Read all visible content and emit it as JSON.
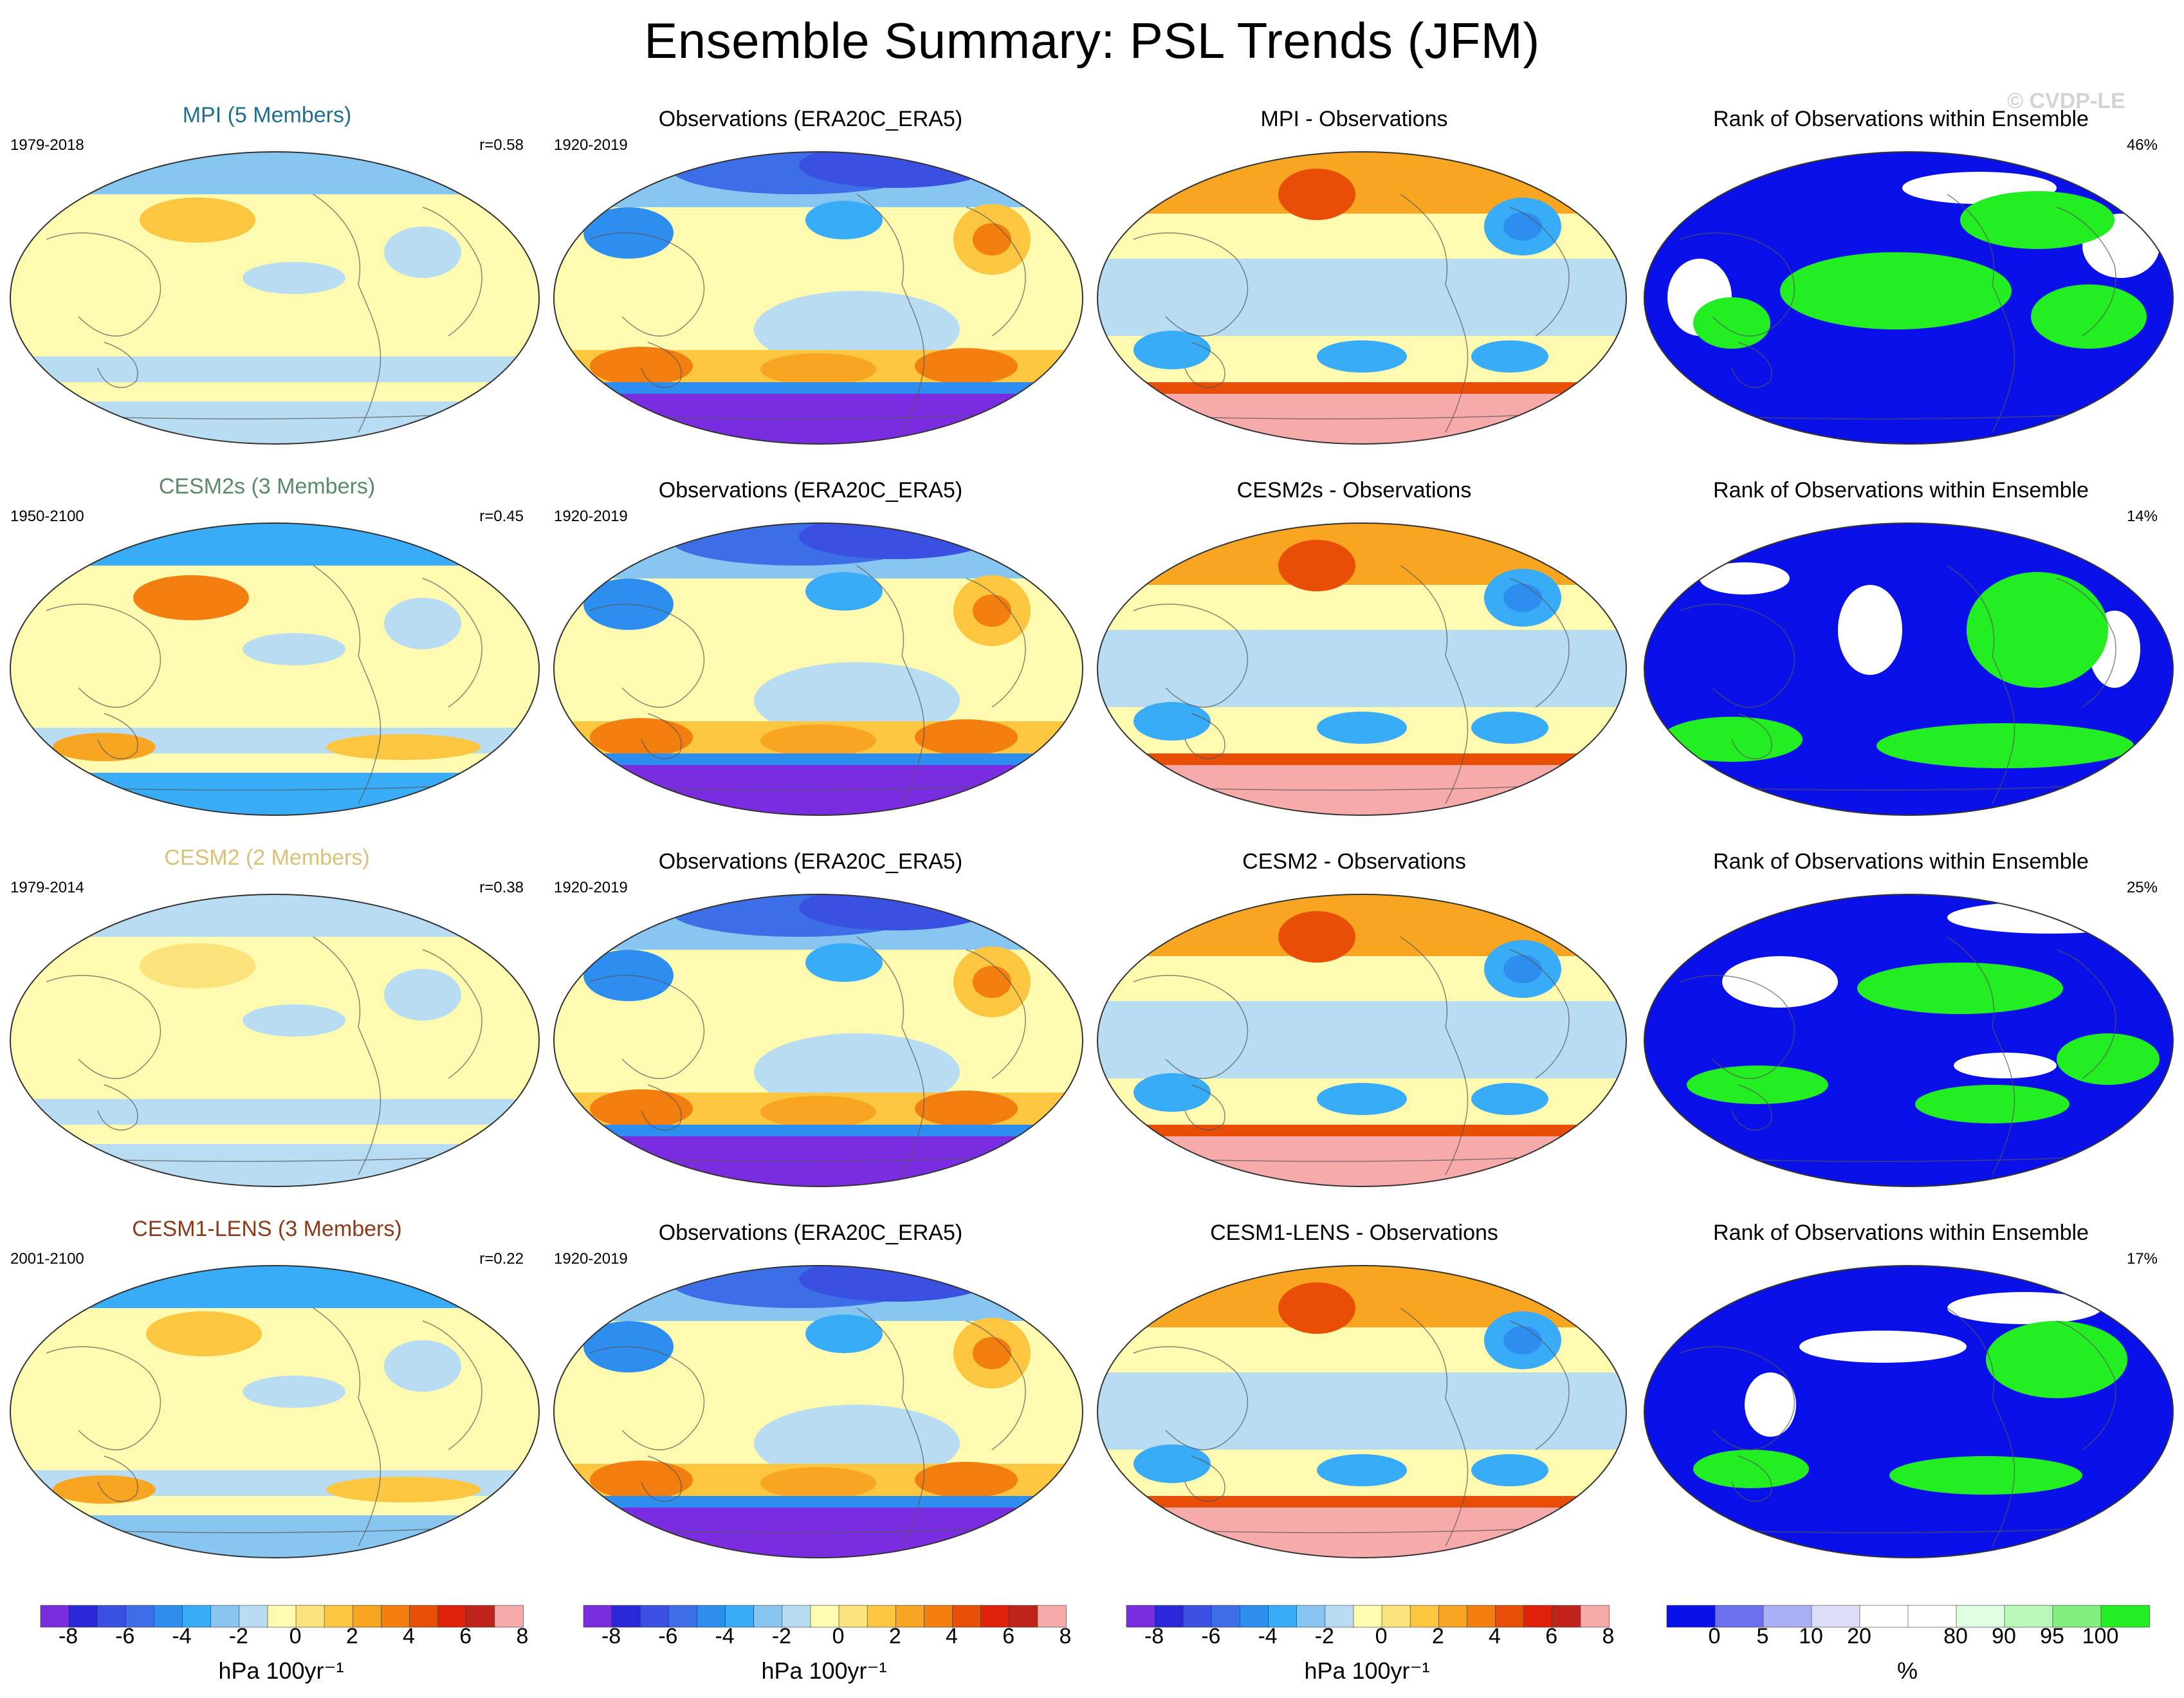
{
  "title": "Ensemble Summary: PSL Trends (JFM)",
  "copyright": "© CVDP-LE",
  "rows": [
    {
      "model": {
        "title": "MPI (5 Members)",
        "title_color": "#1f6f8f",
        "period": "1979-2018",
        "corr": "r=0.58",
        "pattern": "mpi"
      },
      "obs": {
        "title": "Observations (ERA20C_ERA5)",
        "period": "1920-2019",
        "pattern": "obs"
      },
      "diff": {
        "title": "MPI - Observations",
        "pattern": "diff"
      },
      "rank": {
        "title": "Rank of Observations within Ensemble",
        "pct": "46%",
        "pattern": "rank"
      }
    },
    {
      "model": {
        "title": "CESM2s (3 Members)",
        "title_color": "#5a8a6a",
        "period": "1950-2100",
        "corr": "r=0.45",
        "pattern": "cesm2s"
      },
      "obs": {
        "title": "Observations (ERA20C_ERA5)",
        "period": "1920-2019",
        "pattern": "obs"
      },
      "diff": {
        "title": "CESM2s - Observations",
        "pattern": "diff"
      },
      "rank": {
        "title": "Rank of Observations within Ensemble",
        "pct": "14%",
        "pattern": "rank"
      }
    },
    {
      "model": {
        "title": "CESM2 (2 Members)",
        "title_color": "#d8c27a",
        "period": "1979-2014",
        "corr": "r=0.38",
        "pattern": "cesm2"
      },
      "obs": {
        "title": "Observations (ERA20C_ERA5)",
        "period": "1920-2019",
        "pattern": "obs"
      },
      "diff": {
        "title": "CESM2 - Observations",
        "pattern": "diff"
      },
      "rank": {
        "title": "Rank of Observations within Ensemble",
        "pct": "25%",
        "pattern": "rank"
      }
    },
    {
      "model": {
        "title": "CESM1-LENS (3 Members)",
        "title_color": "#8b3a1a",
        "period": "2001-2100",
        "corr": "r=0.22",
        "pattern": "lens"
      },
      "obs": {
        "title": "Observations (ERA20C_ERA5)",
        "period": "1920-2019",
        "pattern": "obs"
      },
      "diff": {
        "title": "CESM1-LENS - Observations",
        "pattern": "diff"
      },
      "rank": {
        "title": "Rank of Observations within Ensemble",
        "pct": "17%",
        "pattern": "rank"
      }
    }
  ],
  "colorbar_trend": {
    "colors": [
      "#7a2ce0",
      "#2828d8",
      "#3a50e0",
      "#3c6ee8",
      "#2e8ef0",
      "#38acf6",
      "#86c6f0",
      "#b8dcf2",
      "#fefab0",
      "#fce27a",
      "#fcc640",
      "#f8a622",
      "#f27e10",
      "#e84e06",
      "#e02008",
      "#c02418",
      "#f6aaaa"
    ],
    "ticks": [
      "-8",
      "-6",
      "-4",
      "-2",
      "0",
      "2",
      "4",
      "6",
      "8"
    ],
    "label": "hPa 100yr⁻¹"
  },
  "colorbar_rank": {
    "colors": [
      "#0a10e8",
      "#6a70f0",
      "#aab0f4",
      "#dcdef8",
      "#ffffff",
      "#ffffff",
      "#e0ffe0",
      "#b8f8b8",
      "#80f080",
      "#22ee22"
    ],
    "ticks": [
      "0",
      "5",
      "10",
      "20",
      "80",
      "90",
      "95",
      "100"
    ],
    "label": "%"
  }
}
